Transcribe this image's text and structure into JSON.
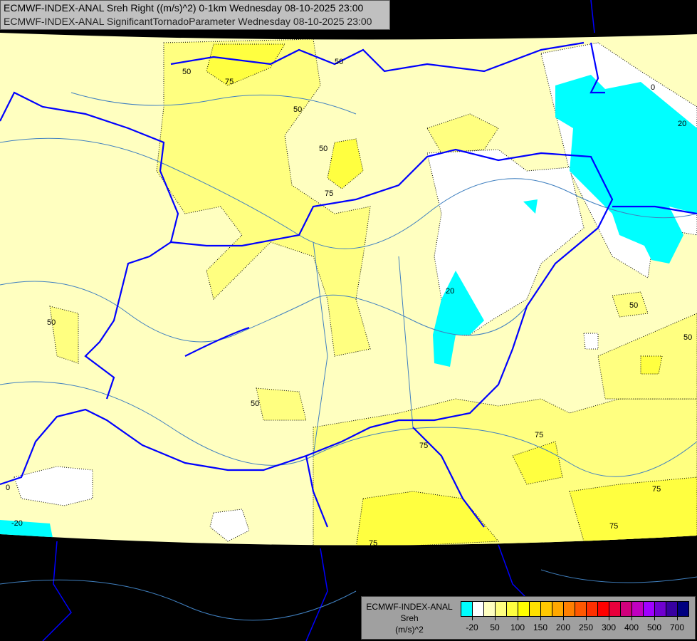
{
  "title": {
    "line1": "ECMWF-INDEX-ANAL Sreh Right ((m/s)^2) 0-1km Wednesday 08-10-2025 23:00",
    "line2": "ECMWF-INDEX-ANAL SignificantTornadoParameter Wednesday 08-10-2025 23:00"
  },
  "legend": {
    "model": "ECMWF-INDEX-ANAL",
    "variable": "Sreh",
    "unit": "(m/s)^2",
    "colors": [
      "#00ffff",
      "#ffffff",
      "#ffffc0",
      "#ffff80",
      "#ffff40",
      "#ffff00",
      "#ffe000",
      "#ffc800",
      "#ffa800",
      "#ff8000",
      "#ff5800",
      "#ff3000",
      "#ff0000",
      "#e8003c",
      "#d0007c",
      "#c000c0",
      "#a000ff",
      "#7000d0",
      "#3800a0",
      "#000080"
    ],
    "labels": [
      "-20",
      "50",
      "100",
      "150",
      "200",
      "250",
      "300",
      "400",
      "500",
      "700"
    ]
  },
  "map": {
    "colors": {
      "background": "#000000",
      "base": "#ffffc0",
      "level50": "#ffff80",
      "level75": "#ffff40",
      "low": "#ffffff",
      "negative": "#00ffff",
      "border": "#0000ff",
      "river": "#4080c0"
    },
    "contour_labels": [
      "50",
      "75",
      "50",
      "50",
      "50",
      "75",
      "0",
      "20",
      "20",
      "50",
      "50",
      "50",
      "50",
      "75",
      "75",
      "75",
      "75",
      "75",
      "0",
      "-20"
    ]
  }
}
